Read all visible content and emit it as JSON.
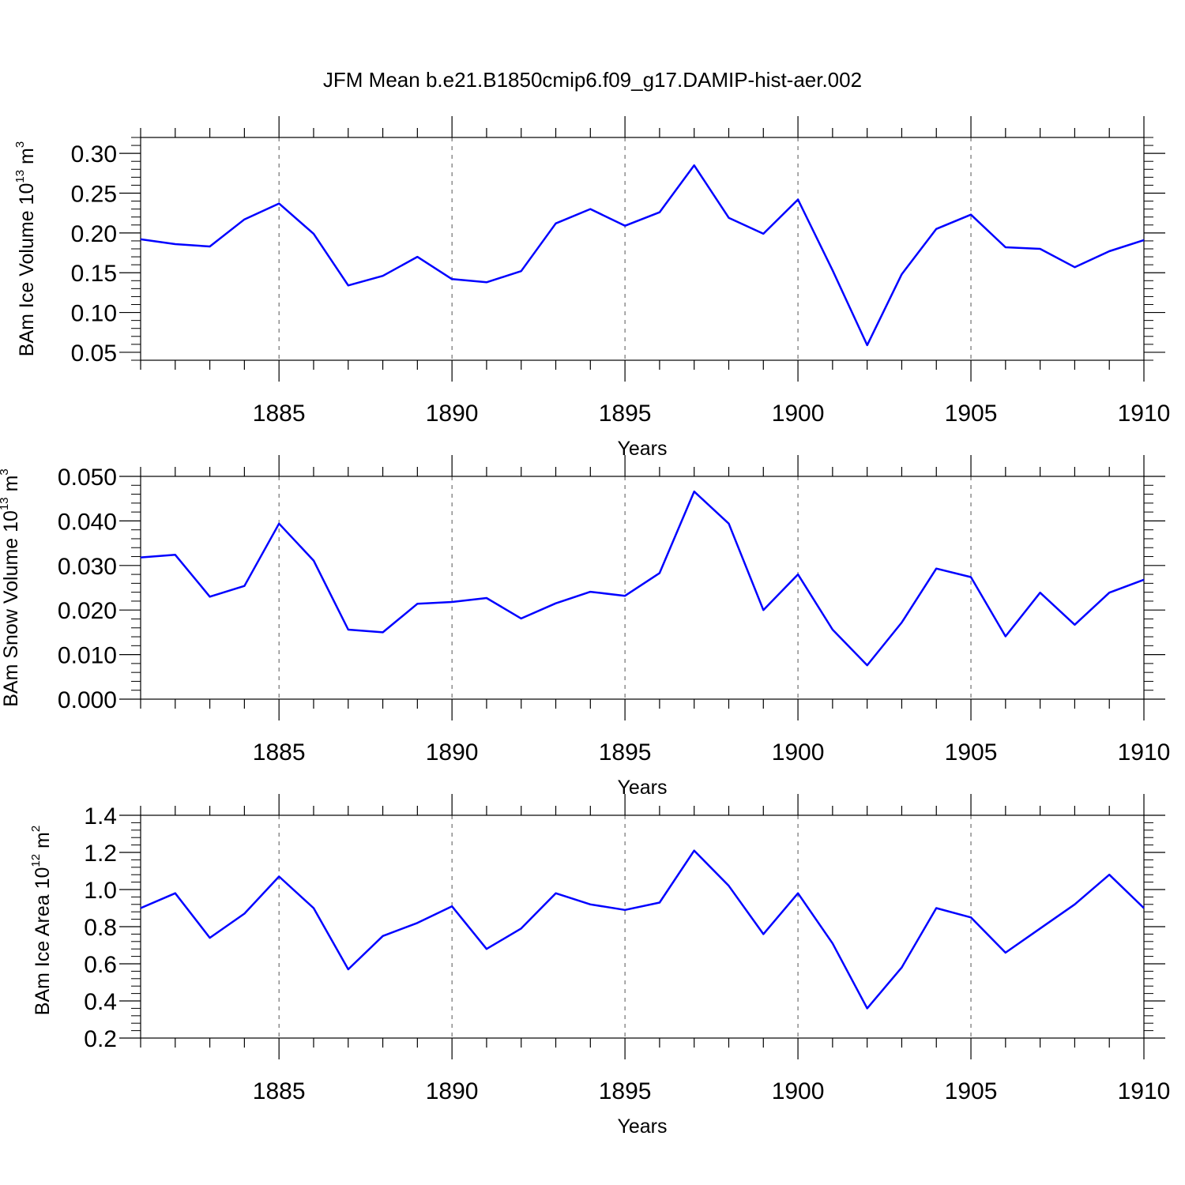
{
  "title": "JFM Mean b.e21.B1850cmip6.f09_g17.DAMIP-hist-aer.002",
  "colors": {
    "line": "#0000ff",
    "axis": "#000000",
    "grid": "#555555"
  },
  "chart_data": [
    {
      "type": "line",
      "ylabel": {
        "prefix": "BAm Ice Volume 10",
        "exponent": "13",
        "unit": " m",
        "unit_exponent": "3"
      },
      "xlabel": "Years",
      "xlim": [
        1881,
        1910
      ],
      "ylim": [
        0.04,
        0.32
      ],
      "yticks": [
        0.05,
        0.1,
        0.15,
        0.2,
        0.25,
        0.3
      ],
      "ytick_labels": [
        "0.05",
        "0.10",
        "0.15",
        "0.20",
        "0.25",
        "0.30"
      ],
      "xticks": [
        1885,
        1890,
        1895,
        1900,
        1905,
        1910
      ],
      "xtick_labels": [
        "1885",
        "1890",
        "1895",
        "1900",
        "1905",
        "1910"
      ],
      "grid": "vertical dashed at major x ticks",
      "x": [
        1881,
        1882,
        1883,
        1884,
        1885,
        1886,
        1887,
        1888,
        1889,
        1890,
        1891,
        1892,
        1893,
        1894,
        1895,
        1896,
        1897,
        1898,
        1899,
        1900,
        1901,
        1902,
        1903,
        1904,
        1905,
        1906,
        1907,
        1908,
        1909,
        1910
      ],
      "y": [
        0.192,
        0.186,
        0.183,
        0.217,
        0.237,
        0.199,
        0.134,
        0.146,
        0.17,
        0.142,
        0.138,
        0.152,
        0.212,
        0.23,
        0.209,
        0.226,
        0.285,
        0.219,
        0.199,
        0.242,
        0.153,
        0.059,
        0.148,
        0.205,
        0.223,
        0.182,
        0.18,
        0.157,
        0.177,
        0.191
      ]
    },
    {
      "type": "line",
      "ylabel": {
        "prefix": "BAm Snow Volume 10",
        "exponent": "13",
        "unit": " m",
        "unit_exponent": "3"
      },
      "xlabel": "Years",
      "xlim": [
        1881,
        1910
      ],
      "ylim": [
        0.0,
        0.05
      ],
      "yticks": [
        0.0,
        0.01,
        0.02,
        0.03,
        0.04,
        0.05
      ],
      "ytick_labels": [
        "0.000",
        "0.010",
        "0.020",
        "0.030",
        "0.040",
        "0.050"
      ],
      "xticks": [
        1885,
        1890,
        1895,
        1900,
        1905,
        1910
      ],
      "xtick_labels": [
        "1885",
        "1890",
        "1895",
        "1900",
        "1905",
        "1910"
      ],
      "grid": "vertical dashed at major x ticks",
      "x": [
        1881,
        1882,
        1883,
        1884,
        1885,
        1886,
        1887,
        1888,
        1889,
        1890,
        1891,
        1892,
        1893,
        1894,
        1895,
        1896,
        1897,
        1898,
        1899,
        1900,
        1901,
        1902,
        1903,
        1904,
        1905,
        1906,
        1907,
        1908,
        1909,
        1910
      ],
      "y": [
        0.0318,
        0.0324,
        0.023,
        0.0254,
        0.0394,
        0.0311,
        0.0156,
        0.015,
        0.0214,
        0.0218,
        0.0227,
        0.0181,
        0.0215,
        0.0241,
        0.0232,
        0.0283,
        0.0466,
        0.0394,
        0.02,
        0.028,
        0.0156,
        0.0076,
        0.0172,
        0.0293,
        0.0274,
        0.0141,
        0.0239,
        0.0167,
        0.0239,
        0.0268
      ]
    },
    {
      "type": "line",
      "ylabel": {
        "prefix": "BAm Ice Area 10",
        "exponent": "12",
        "unit": " m",
        "unit_exponent": "2"
      },
      "xlabel": "Years",
      "xlim": [
        1881,
        1910
      ],
      "ylim": [
        0.2,
        1.4
      ],
      "yticks": [
        0.2,
        0.4,
        0.6,
        0.8,
        1.0,
        1.2,
        1.4
      ],
      "ytick_labels": [
        "0.2",
        "0.4",
        "0.6",
        "0.8",
        "1.0",
        "1.2",
        "1.4"
      ],
      "xticks": [
        1885,
        1890,
        1895,
        1900,
        1905,
        1910
      ],
      "xtick_labels": [
        "1885",
        "1890",
        "1895",
        "1900",
        "1905",
        "1910"
      ],
      "grid": "vertical dashed at major x ticks",
      "x": [
        1881,
        1882,
        1883,
        1884,
        1885,
        1886,
        1887,
        1888,
        1889,
        1890,
        1891,
        1892,
        1893,
        1894,
        1895,
        1896,
        1897,
        1898,
        1899,
        1900,
        1901,
        1902,
        1903,
        1904,
        1905,
        1906,
        1907,
        1908,
        1909,
        1910
      ],
      "y": [
        0.9,
        0.98,
        0.74,
        0.87,
        1.07,
        0.9,
        0.57,
        0.75,
        0.82,
        0.91,
        0.68,
        0.79,
        0.98,
        0.92,
        0.89,
        0.93,
        1.21,
        1.02,
        0.76,
        0.98,
        0.71,
        0.36,
        0.58,
        0.9,
        0.85,
        0.66,
        0.79,
        0.92,
        1.08,
        0.9
      ]
    }
  ]
}
